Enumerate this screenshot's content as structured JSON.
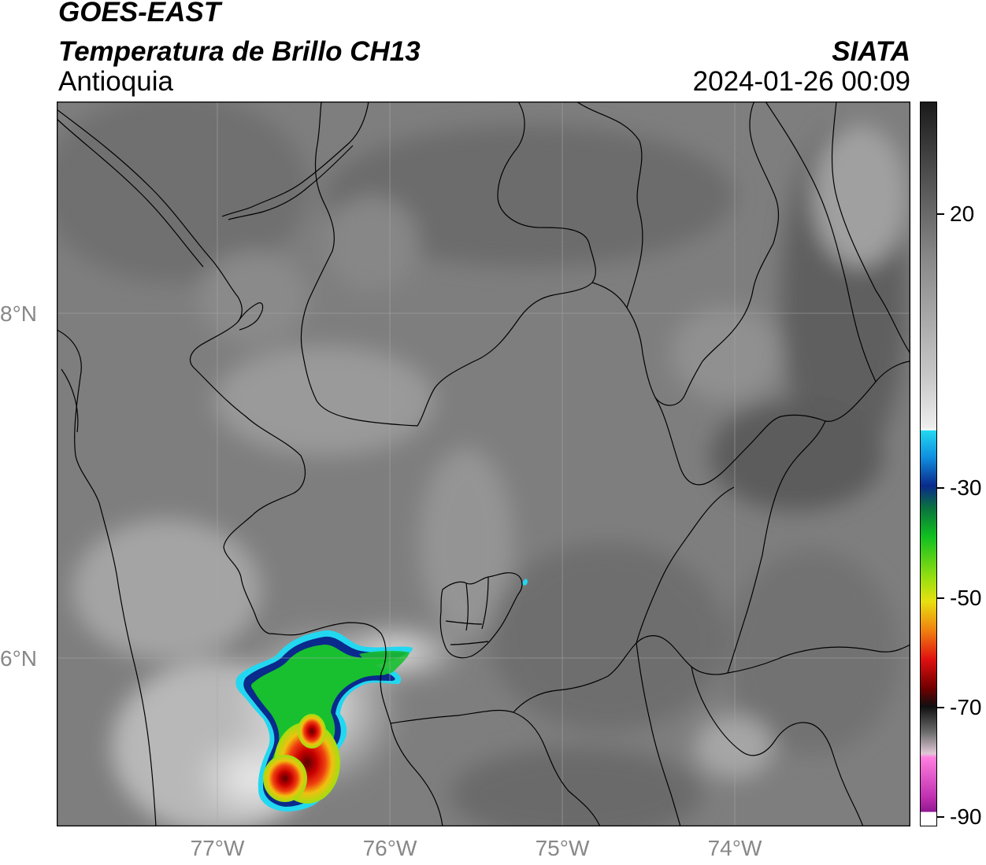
{
  "header": {
    "satellite": "GOES-EAST",
    "product": "Temperatura de Brillo CH13",
    "region": "Antioquia",
    "agency": "SIATA",
    "datetime": "2024-01-26 00:09"
  },
  "map": {
    "longitude_labels": [
      "77°W",
      "76°W",
      "75°W",
      "74°W"
    ],
    "latitude_labels": [
      "8°N",
      "6°N"
    ],
    "lon_range": [
      -77.94,
      -73.0
    ],
    "lat_range": [
      5.05,
      9.25
    ]
  },
  "colorbar": {
    "tick_labels": [
      "20",
      "-30",
      "-50",
      "-70",
      "-90"
    ],
    "tick_values": [
      20,
      -30,
      -50,
      -70,
      -90
    ],
    "range": [
      -90,
      30
    ],
    "unit_colors": {
      "warm_gray_top": "#1a1a1a",
      "white_mid": "#f5f5f5",
      "cyan": "#22d8f0",
      "blue": "#0a2a8c",
      "green": "#10c020",
      "yellow": "#e8e010",
      "red": "#d01010",
      "dark_red": "#5a0000",
      "magenta": "#d020c0",
      "purple": "#901890"
    }
  }
}
